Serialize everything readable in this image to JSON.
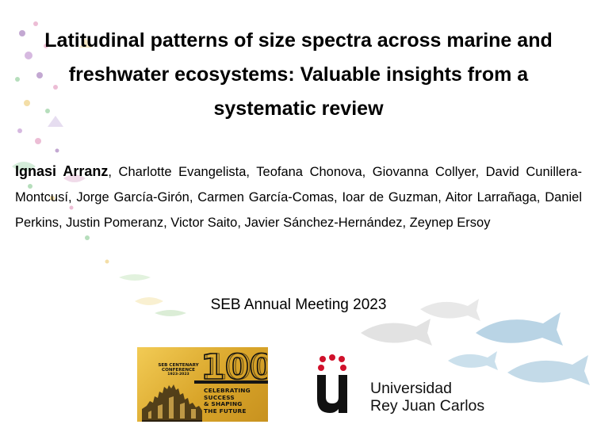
{
  "title": {
    "line1": "Latitudinal patterns of size spectra across marine and",
    "line2": "freshwater ecosystems: Valuable insights from a",
    "line3": "systematic review"
  },
  "authors": {
    "lead": "Ignasi Arranz",
    "others": ", Charlotte Evangelista, Teofana Chonova, Giovanna Collyer, David Cunillera-Montcusí, Jorge García-Girón, Carmen García-Comas, Ioar de Guzman, Aitor Larrañaga, Daniel Perkins, Justin Pomeranz, Victor Saito, Javier Sánchez-Hernández, Zeynep Ersoy"
  },
  "meeting": "SEB Annual Meeting 2023",
  "seb_logo": {
    "line1": "SEB CENTENARY",
    "line2": "CONFERENCE",
    "years": "1923-2023",
    "number": "100",
    "slogan": [
      "CELEBRATING",
      "SUCCESS",
      "& SHAPING",
      "THE FUTURE"
    ],
    "color": "#e0b13a"
  },
  "university": {
    "line1": "Universidad",
    "line2": "Rey Juan Carlos",
    "mark_color": "#111111",
    "dots_color": "#d0112b"
  },
  "decoration": {
    "fish_color": "#6ea7c9",
    "left_colors": [
      "#b08cc4",
      "#e6a8c8",
      "#9ed3a6",
      "#f0d38a"
    ]
  }
}
